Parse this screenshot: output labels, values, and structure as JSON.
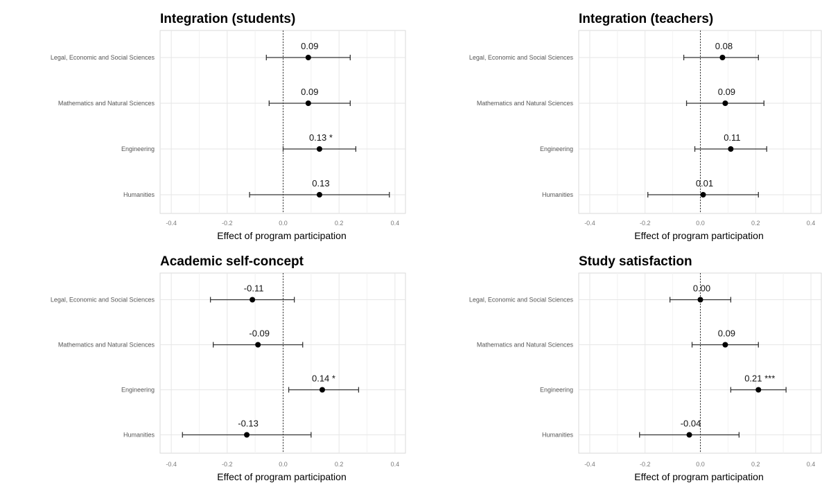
{
  "chart_data": [
    {
      "type": "forest",
      "title": "Integration (students)",
      "xlabel": "Effect of program participation",
      "xlim": [
        -0.44,
        0.44
      ],
      "xticks": [
        "-0.4",
        "-0.2",
        "0.0",
        "0.2",
        "0.4"
      ],
      "reference_line": 0,
      "grid": true,
      "categories": [
        "Legal, Economic and Social Sciences",
        "Mathematics and Natural Sciences",
        "Engineering",
        "Humanities"
      ],
      "estimates": [
        0.09,
        0.09,
        0.13,
        0.13
      ],
      "ci_lower": [
        -0.06,
        -0.05,
        0.0,
        -0.12
      ],
      "ci_upper": [
        0.24,
        0.24,
        0.26,
        0.38
      ],
      "labels": [
        "0.09",
        "0.09",
        "0.13 *",
        "0.13"
      ]
    },
    {
      "type": "forest",
      "title": "Integration (teachers)",
      "xlabel": "Effect of program participation",
      "xlim": [
        -0.44,
        0.44
      ],
      "xticks": [
        "-0.4",
        "-0.2",
        "0.0",
        "0.2",
        "0.4"
      ],
      "reference_line": 0,
      "grid": true,
      "categories": [
        "Legal, Economic and Social Sciences",
        "Mathematics and Natural Sciences",
        "Engineering",
        "Humanities"
      ],
      "estimates": [
        0.08,
        0.09,
        0.11,
        0.01
      ],
      "ci_lower": [
        -0.06,
        -0.05,
        -0.02,
        -0.19
      ],
      "ci_upper": [
        0.21,
        0.23,
        0.24,
        0.21
      ],
      "labels": [
        "0.08",
        "0.09",
        "0.11",
        "0.01"
      ]
    },
    {
      "type": "forest",
      "title": "Academic self-concept",
      "xlabel": "Effect of program participation",
      "xlim": [
        -0.44,
        0.44
      ],
      "xticks": [
        "-0.4",
        "-0.2",
        "0.0",
        "0.2",
        "0.4"
      ],
      "reference_line": 0,
      "grid": true,
      "categories": [
        "Legal, Economic and Social Sciences",
        "Mathematics and Natural Sciences",
        "Engineering",
        "Humanities"
      ],
      "estimates": [
        -0.11,
        -0.09,
        0.14,
        -0.13
      ],
      "ci_lower": [
        -0.26,
        -0.25,
        0.02,
        -0.36
      ],
      "ci_upper": [
        0.04,
        0.07,
        0.27,
        0.1
      ],
      "labels": [
        "-0.11",
        "-0.09",
        "0.14 *",
        "-0.13"
      ]
    },
    {
      "type": "forest",
      "title": "Study satisfaction",
      "xlabel": "Effect of program participation",
      "xlim": [
        -0.44,
        0.44
      ],
      "xticks": [
        "-0.4",
        "-0.2",
        "0.0",
        "0.2",
        "0.4"
      ],
      "reference_line": 0,
      "grid": true,
      "categories": [
        "Legal, Economic and Social Sciences",
        "Mathematics and Natural Sciences",
        "Engineering",
        "Humanities"
      ],
      "estimates": [
        0.0,
        0.09,
        0.21,
        -0.04
      ],
      "ci_lower": [
        -0.11,
        -0.03,
        0.11,
        -0.22
      ],
      "ci_upper": [
        0.11,
        0.21,
        0.31,
        0.14
      ],
      "labels": [
        "0.00",
        "0.09",
        "0.21 ***",
        "-0.04"
      ]
    }
  ]
}
